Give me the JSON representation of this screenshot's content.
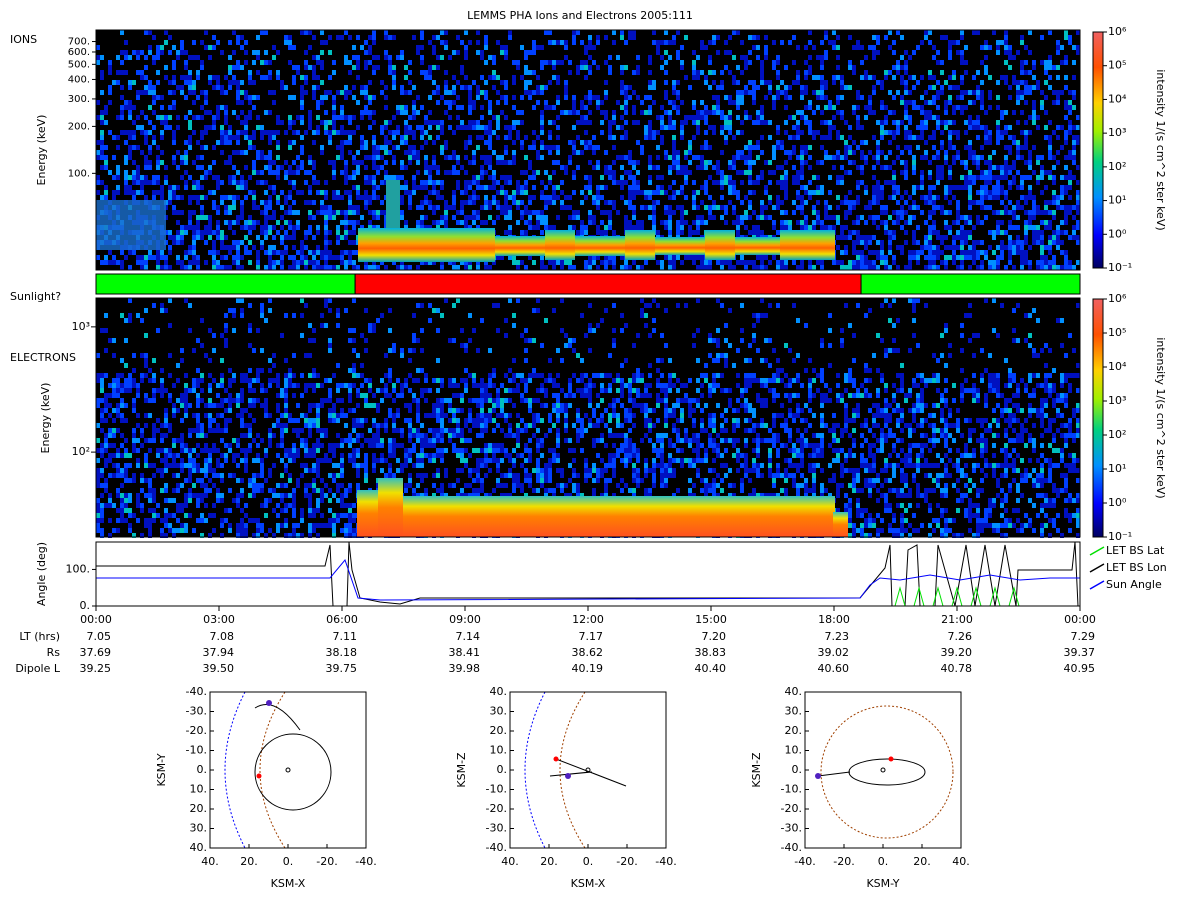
{
  "title": "LEMMS PHA Ions and Electrons  2005:111",
  "ions": {
    "label": "IONS",
    "ylabel": "Energy (keV)",
    "ylim": [
      24,
      830
    ],
    "yticks": [
      {
        "value": 100,
        "label": "100."
      },
      {
        "value": 200,
        "label": "200."
      },
      {
        "value": 300,
        "label": "300."
      },
      {
        "value": 400,
        "label": "400."
      },
      {
        "value": 500,
        "label": "500."
      },
      {
        "value": 600,
        "label": "600."
      },
      {
        "value": 700,
        "label": "700."
      }
    ]
  },
  "colorbar": {
    "label": "intensity 1/(s cm^2 ster keV)",
    "lim": [
      -1,
      6
    ],
    "ticks": [
      {
        "value": 6,
        "label": "10⁶"
      },
      {
        "value": 5,
        "label": "10⁵"
      },
      {
        "value": 4,
        "label": "10⁴"
      },
      {
        "value": 3,
        "label": "10³"
      },
      {
        "value": 2,
        "label": "10²"
      },
      {
        "value": 1,
        "label": "10¹"
      },
      {
        "value": 0,
        "label": "10⁰"
      },
      {
        "value": -1,
        "label": "10⁻¹"
      }
    ]
  },
  "sunlight": {
    "label": "Sunlight?",
    "segments": [
      {
        "start": 0,
        "end": 6.32,
        "color": "#00ff00"
      },
      {
        "start": 6.32,
        "end": 18.66,
        "color": "#ff0000"
      },
      {
        "start": 18.66,
        "end": 24,
        "color": "#00ff00"
      }
    ]
  },
  "electrons": {
    "label": "ELECTRONS",
    "ylabel": "Energy (keV)",
    "ylim": [
      21,
      1700
    ],
    "yticks": [
      {
        "value": 100,
        "label": "10²"
      },
      {
        "value": 1000,
        "label": "10³"
      }
    ]
  },
  "angle": {
    "ylabel": "Angle (deg)",
    "ylim": [
      0,
      175
    ],
    "yticks": [
      {
        "value": 0,
        "label": "0."
      },
      {
        "value": 100,
        "label": "100."
      }
    ],
    "legend": [
      {
        "name": "LET BS Lat",
        "color": "#00e000"
      },
      {
        "name": "LET BS Lon",
        "color": "#000000"
      },
      {
        "name": "Sun Angle",
        "color": "#0000ff"
      }
    ]
  },
  "time_axis": {
    "xlim": [
      0,
      24
    ],
    "ticks": [
      {
        "value": 0,
        "label": "00:00"
      },
      {
        "value": 3,
        "label": "03:00"
      },
      {
        "value": 6,
        "label": "06:00"
      },
      {
        "value": 9,
        "label": "09:00"
      },
      {
        "value": 12,
        "label": "12:00"
      },
      {
        "value": 15,
        "label": "15:00"
      },
      {
        "value": 18,
        "label": "18:00"
      },
      {
        "value": 21,
        "label": "21:00"
      },
      {
        "value": 24,
        "label": "00:00"
      }
    ]
  },
  "ephemeris": [
    {
      "name": "LT (hrs)",
      "values": [
        "7.05",
        "7.08",
        "7.11",
        "7.14",
        "7.17",
        "7.20",
        "7.23",
        "7.26",
        "7.29"
      ]
    },
    {
      "name": "Rs",
      "values": [
        "37.69",
        "37.94",
        "38.18",
        "38.41",
        "38.62",
        "38.83",
        "39.02",
        "39.20",
        "39.37"
      ]
    },
    {
      "name": "Dipole L",
      "values": [
        "39.25",
        "39.50",
        "39.75",
        "39.98",
        "40.19",
        "40.40",
        "40.60",
        "40.78",
        "40.95"
      ]
    }
  ],
  "orbits": [
    {
      "xlabel": "KSM-X",
      "ylabel": "KSM-Y",
      "xlim": [
        40,
        -40
      ],
      "ylim": [
        -40,
        40
      ],
      "xticks": [
        {
          "value": 40,
          "label": "40."
        },
        {
          "value": 20,
          "label": "20."
        },
        {
          "value": 0,
          "label": "0."
        },
        {
          "value": -20,
          "label": "-20."
        },
        {
          "value": -40,
          "label": "-40."
        }
      ],
      "yticks": [
        {
          "value": -40,
          "label": "-40."
        },
        {
          "value": -30,
          "label": "-30."
        },
        {
          "value": -20,
          "label": "-20."
        },
        {
          "value": -10,
          "label": "-10."
        },
        {
          "value": 0,
          "label": "0."
        },
        {
          "value": 10,
          "label": "10."
        },
        {
          "value": 20,
          "label": "20."
        },
        {
          "value": 30,
          "label": "30."
        },
        {
          "value": 40,
          "label": "40."
        }
      ]
    },
    {
      "xlabel": "KSM-X",
      "ylabel": "KSM-Z",
      "xlim": [
        40,
        -40
      ],
      "ylim": [
        40,
        -40
      ],
      "xticks": [
        {
          "value": 40,
          "label": "40."
        },
        {
          "value": 20,
          "label": "20."
        },
        {
          "value": 0,
          "label": "0."
        },
        {
          "value": -20,
          "label": "-20."
        },
        {
          "value": -40,
          "label": "-40."
        }
      ],
      "yticks": [
        {
          "value": 40,
          "label": "40."
        },
        {
          "value": 30,
          "label": "30."
        },
        {
          "value": 20,
          "label": "20."
        },
        {
          "value": 10,
          "label": "10."
        },
        {
          "value": 0,
          "label": "0."
        },
        {
          "value": -10,
          "label": "-10."
        },
        {
          "value": -20,
          "label": "-20."
        },
        {
          "value": -30,
          "label": "-30."
        },
        {
          "value": -40,
          "label": "-40."
        }
      ]
    },
    {
      "xlabel": "KSM-Y",
      "ylabel": "KSM-Z",
      "xlim": [
        -40,
        40
      ],
      "ylim": [
        40,
        -40
      ],
      "xticks": [
        {
          "value": -40,
          "label": "-40."
        },
        {
          "value": -20,
          "label": "-20."
        },
        {
          "value": 0,
          "label": "0."
        },
        {
          "value": 20,
          "label": "20."
        },
        {
          "value": 40,
          "label": "40."
        }
      ],
      "yticks": [
        {
          "value": 40,
          "label": "40."
        },
        {
          "value": 30,
          "label": "30."
        },
        {
          "value": 20,
          "label": "20."
        },
        {
          "value": 10,
          "label": "10."
        },
        {
          "value": 0,
          "label": "0."
        },
        {
          "value": -10,
          "label": "-10."
        },
        {
          "value": -20,
          "label": "-20."
        },
        {
          "value": -30,
          "label": "-30."
        },
        {
          "value": -40,
          "label": "-40."
        }
      ]
    }
  ]
}
